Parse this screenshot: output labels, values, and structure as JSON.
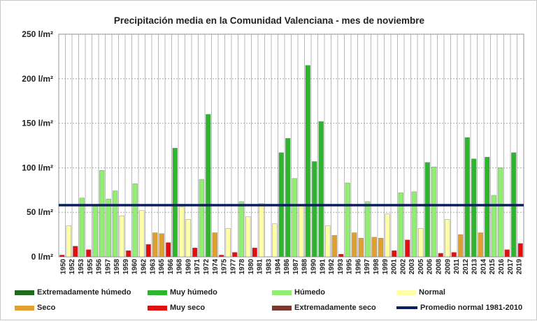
{
  "chart_data": {
    "type": "bar",
    "title": "Precipitación media en la Comunidad Valenciana - mes de noviembre",
    "ylim": [
      0,
      250
    ],
    "y_ticks": [
      {
        "value": 0,
        "label": "0 l/m²"
      },
      {
        "value": 50,
        "label": "50 l/m²"
      },
      {
        "value": 100,
        "label": "100 l/m²"
      },
      {
        "value": 150,
        "label": "150 l/m²"
      },
      {
        "value": 200,
        "label": "200 l/m²"
      },
      {
        "value": 250,
        "label": "250 l/m²"
      }
    ],
    "grid": true,
    "reference_line": {
      "name": "Promedio normal 1981-2010",
      "value": 58,
      "color": "#0a1f5c"
    },
    "categories": [
      {
        "key": "extremadamente_humedo",
        "name": "Extremadamente húmedo",
        "color": "#1e6b1e"
      },
      {
        "key": "muy_humedo",
        "name": "Muy húmedo",
        "color": "#2db52d"
      },
      {
        "key": "humedo",
        "name": "Húmedo",
        "color": "#90ee70"
      },
      {
        "key": "normal",
        "name": "Normal",
        "color": "#ffffa8"
      },
      {
        "key": "seco",
        "name": "Seco",
        "color": "#e0a030"
      },
      {
        "key": "muy_seco",
        "name": "Muy seco",
        "color": "#e01010"
      },
      {
        "key": "extremadamente_seco",
        "name": "Extremadamente seco",
        "color": "#7a3b2e"
      }
    ],
    "tick_labels": [
      "1950",
      "1952",
      "1953",
      "1955",
      "1956",
      "1957",
      "1958",
      "1959",
      "1960",
      "1962",
      "1963",
      "1965",
      "1966",
      "1968",
      "1969",
      "1971",
      "1972",
      "1974",
      "1975",
      "1977",
      "1978",
      "1980",
      "1981",
      "1983",
      "1984",
      "1986",
      "1987",
      "1988",
      "1990",
      "1991",
      "1992",
      "1993",
      "1995",
      "1996",
      "1997",
      "1998",
      "1999",
      "2001",
      "2002",
      "2003",
      "2005",
      "2006",
      "2008",
      "2009",
      "2011",
      "2012",
      "2013",
      "2014",
      "2015",
      "2016",
      "2017",
      "2019"
    ],
    "bars": [
      {
        "year": 1950,
        "value": 2,
        "class": "muy_seco"
      },
      {
        "year": 1951,
        "value": 35,
        "class": "normal"
      },
      {
        "year": 1952,
        "value": 12,
        "class": "muy_seco"
      },
      {
        "year": 1953,
        "value": 66,
        "class": "humedo"
      },
      {
        "year": 1954,
        "value": 8,
        "class": "muy_seco"
      },
      {
        "year": 1955,
        "value": 59,
        "class": "humedo"
      },
      {
        "year": 1956,
        "value": 97,
        "class": "humedo"
      },
      {
        "year": 1957,
        "value": 65,
        "class": "humedo"
      },
      {
        "year": 1958,
        "value": 74,
        "class": "humedo"
      },
      {
        "year": 1959,
        "value": 46,
        "class": "normal"
      },
      {
        "year": 1960,
        "value": 7,
        "class": "muy_seco"
      },
      {
        "year": 1961,
        "value": 82,
        "class": "humedo"
      },
      {
        "year": 1962,
        "value": 52,
        "class": "normal"
      },
      {
        "year": 1963,
        "value": 14,
        "class": "muy_seco"
      },
      {
        "year": 1964,
        "value": 27,
        "class": "seco"
      },
      {
        "year": 1965,
        "value": 26,
        "class": "seco"
      },
      {
        "year": 1966,
        "value": 16,
        "class": "muy_seco"
      },
      {
        "year": 1967,
        "value": 122,
        "class": "muy_humedo"
      },
      {
        "year": 1968,
        "value": 56,
        "class": "normal"
      },
      {
        "year": 1969,
        "value": 42,
        "class": "normal"
      },
      {
        "year": 1970,
        "value": 10,
        "class": "muy_seco"
      },
      {
        "year": 1971,
        "value": 87,
        "class": "humedo"
      },
      {
        "year": 1972,
        "value": 160,
        "class": "muy_humedo"
      },
      {
        "year": 1973,
        "value": 27,
        "class": "seco"
      },
      {
        "year": 1974,
        "value": 2,
        "class": "muy_seco"
      },
      {
        "year": 1975,
        "value": 32,
        "class": "normal"
      },
      {
        "year": 1976,
        "value": 5,
        "class": "muy_seco"
      },
      {
        "year": 1977,
        "value": 62,
        "class": "humedo"
      },
      {
        "year": 1978,
        "value": 45,
        "class": "normal"
      },
      {
        "year": 1979,
        "value": 10,
        "class": "muy_seco"
      },
      {
        "year": 1980,
        "value": 60,
        "class": "normal"
      },
      {
        "year": 1981,
        "value": 0,
        "class": "normal"
      },
      {
        "year": 1982,
        "value": 37,
        "class": "normal"
      },
      {
        "year": 1983,
        "value": 117,
        "class": "muy_humedo"
      },
      {
        "year": 1984,
        "value": 133,
        "class": "muy_humedo"
      },
      {
        "year": 1985,
        "value": 88,
        "class": "humedo"
      },
      {
        "year": 1986,
        "value": 58,
        "class": "normal"
      },
      {
        "year": 1987,
        "value": 215,
        "class": "muy_humedo"
      },
      {
        "year": 1988,
        "value": 107,
        "class": "muy_humedo"
      },
      {
        "year": 1989,
        "value": 152,
        "class": "muy_humedo"
      },
      {
        "year": 1990,
        "value": 35,
        "class": "normal"
      },
      {
        "year": 1991,
        "value": 24,
        "class": "seco"
      },
      {
        "year": 1992,
        "value": 3,
        "class": "muy_seco"
      },
      {
        "year": 1993,
        "value": 83,
        "class": "humedo"
      },
      {
        "year": 1994,
        "value": 27,
        "class": "seco"
      },
      {
        "year": 1995,
        "value": 21,
        "class": "seco"
      },
      {
        "year": 1996,
        "value": 62,
        "class": "humedo"
      },
      {
        "year": 1997,
        "value": 22,
        "class": "seco"
      },
      {
        "year": 1998,
        "value": 21,
        "class": "seco"
      },
      {
        "year": 1999,
        "value": 48,
        "class": "normal"
      },
      {
        "year": 2000,
        "value": 7,
        "class": "muy_seco"
      },
      {
        "year": 2001,
        "value": 72,
        "class": "humedo"
      },
      {
        "year": 2002,
        "value": 19,
        "class": "muy_seco"
      },
      {
        "year": 2003,
        "value": 73,
        "class": "humedo"
      },
      {
        "year": 2004,
        "value": 32,
        "class": "normal"
      },
      {
        "year": 2005,
        "value": 106,
        "class": "muy_humedo"
      },
      {
        "year": 2006,
        "value": 101,
        "class": "humedo"
      },
      {
        "year": 2007,
        "value": 4,
        "class": "muy_seco"
      },
      {
        "year": 2008,
        "value": 42,
        "class": "normal"
      },
      {
        "year": 2009,
        "value": 5,
        "class": "muy_seco"
      },
      {
        "year": 2010,
        "value": 25,
        "class": "seco"
      },
      {
        "year": 2011,
        "value": 134,
        "class": "muy_humedo"
      },
      {
        "year": 2012,
        "value": 110,
        "class": "muy_humedo"
      },
      {
        "year": 2013,
        "value": 27,
        "class": "seco"
      },
      {
        "year": 2014,
        "value": 112,
        "class": "muy_humedo"
      },
      {
        "year": 2015,
        "value": 69,
        "class": "humedo"
      },
      {
        "year": 2016,
        "value": 100,
        "class": "humedo"
      },
      {
        "year": 2017,
        "value": 8,
        "class": "muy_seco"
      },
      {
        "year": 2018,
        "value": 117,
        "class": "muy_humedo"
      },
      {
        "year": 2019,
        "value": 15,
        "class": "muy_seco"
      }
    ]
  }
}
